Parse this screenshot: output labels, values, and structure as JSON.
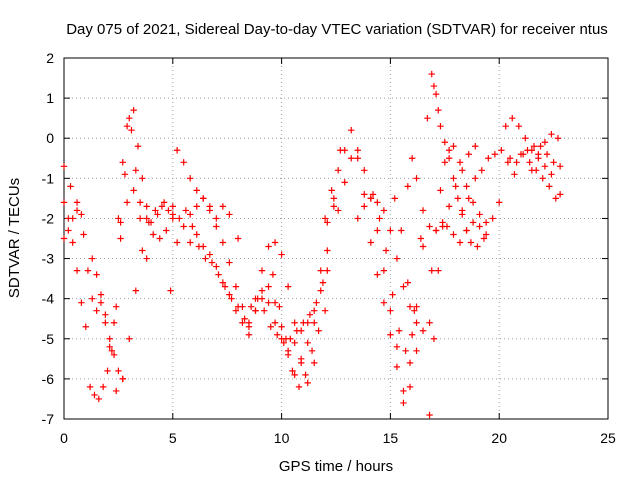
{
  "chart_data": {
    "type": "scatter",
    "title": "Day 075 of 2021, Sidereal Day-to-day VTEC variation (SDTVAR) for receiver ntus",
    "xlabel": "GPS time / hours",
    "ylabel": "SDTVAR / TECUs",
    "xlim": [
      0,
      25
    ],
    "ylim": [
      -7,
      2
    ],
    "xticks": [
      "0",
      "5",
      "10",
      "15",
      "20",
      "25"
    ],
    "yticks": [
      "2",
      "1",
      "0",
      "-1",
      "-2",
      "-3",
      "-4",
      "-5",
      "-6",
      "-7"
    ],
    "grid": true,
    "marker": "plus",
    "color": "#ff0000",
    "series": [
      {
        "x": [
          0.0,
          0.3,
          0.6,
          0.9,
          1.1,
          1.3,
          1.5,
          1.7,
          1.9,
          2.1,
          2.3,
          2.5,
          2.7,
          2.9,
          3.1,
          3.3,
          3.5,
          3.8
        ],
        "y": [
          -0.7,
          -1.2,
          -1.6,
          -2.4,
          -3.3,
          -4.0,
          -4.3,
          -4.1,
          -4.6,
          -5.2,
          -4.6,
          -2.0,
          -0.6,
          0.3,
          0.2,
          -0.8,
          -2.0,
          -3.0
        ]
      },
      {
        "x": [
          0.0,
          0.2,
          0.4,
          0.6,
          0.8
        ],
        "y": [
          -2.5,
          -2.3,
          -2.0,
          -1.8,
          -1.9
        ]
      },
      {
        "x": [
          0.0,
          0.2,
          0.4,
          0.6,
          0.8,
          1.0
        ],
        "y": [
          -1.6,
          -2.0,
          -2.6,
          -3.3,
          -4.1,
          -4.7
        ]
      },
      {
        "x": [
          1.2,
          1.4,
          1.6,
          1.8,
          2.0,
          2.2,
          2.4,
          2.6,
          2.8,
          3.0,
          3.2,
          3.4,
          3.6,
          3.8,
          4.0,
          4.3,
          4.6
        ],
        "y": [
          -6.2,
          -6.4,
          -6.5,
          -6.2,
          -5.8,
          -5.3,
          -4.2,
          -2.5,
          -0.9,
          0.5,
          0.7,
          -0.2,
          -1.0,
          -1.7,
          -2.1,
          -1.9,
          -1.6
        ]
      },
      {
        "x": [
          1.3,
          1.5,
          1.7,
          1.9,
          2.1,
          2.3,
          2.5,
          2.7
        ],
        "y": [
          -3.0,
          -3.4,
          -3.9,
          -4.4,
          -5.0,
          -5.4,
          -5.8,
          -6.0
        ]
      },
      {
        "x": [
          2.4,
          2.7,
          3.0,
          3.3,
          3.6,
          3.9,
          4.2,
          4.5,
          4.8,
          5.0
        ],
        "y": [
          -6.3,
          -6.0,
          -5.0,
          -3.8,
          -2.8,
          -2.1,
          -1.8,
          -1.7,
          -1.8,
          -1.9
        ]
      },
      {
        "x": [
          2.6,
          2.9,
          3.2,
          3.5,
          3.8,
          4.1,
          4.4,
          4.7,
          5.0
        ],
        "y": [
          -2.1,
          -1.6,
          -1.3,
          -1.6,
          -2.0,
          -2.4,
          -2.5,
          -2.3,
          -2.0
        ]
      },
      {
        "x": [
          4.9,
          5.2,
          5.5,
          5.8,
          6.1,
          6.4,
          6.7,
          7.0,
          7.3,
          7.6,
          8.0
        ],
        "y": [
          -3.8,
          -2.6,
          -2.2,
          -1.9,
          -1.7,
          -1.5,
          -1.7,
          -2.0,
          -1.7,
          -1.9,
          -2.5
        ]
      },
      {
        "x": [
          5.0,
          5.3,
          5.6,
          5.9,
          6.2,
          6.5,
          6.8,
          7.1,
          7.4,
          7.7,
          8.0,
          8.3,
          8.6,
          8.9,
          9.2,
          9.5,
          9.8,
          10.1,
          10.4,
          10.7,
          11.0,
          11.3,
          11.6,
          11.9,
          12.1,
          12.4,
          12.7
        ],
        "y": [
          -1.7,
          -2.0,
          -1.8,
          -2.2,
          -2.7,
          -3.0,
          -3.1,
          -3.4,
          -3.7,
          -4.0,
          -4.2,
          -4.5,
          -4.2,
          -4.0,
          -4.3,
          -4.7,
          -4.9,
          -5.1,
          -5.0,
          -4.8,
          -4.6,
          -4.4,
          -4.1,
          -3.6,
          -2.8,
          -1.5,
          -0.3
        ]
      },
      {
        "x": [
          5.2,
          5.5,
          5.8,
          6.1,
          6.4,
          6.7,
          7.0,
          7.3,
          7.6,
          7.9,
          8.2,
          8.5,
          8.8,
          9.1,
          9.4,
          9.7,
          10.0,
          10.3,
          10.6,
          10.9,
          11.2,
          11.5,
          11.8,
          12.1
        ],
        "y": [
          -0.3,
          -0.6,
          -1.0,
          -1.3,
          -1.5,
          -1.8,
          -2.2,
          -2.6,
          -3.1,
          -3.7,
          -4.2,
          -4.6,
          -4.3,
          -4.0,
          -4.1,
          -4.6,
          -5.0,
          -5.3,
          -5.1,
          -4.8,
          -4.6,
          -4.3,
          -3.8,
          -3.3
        ]
      },
      {
        "x": [
          5.8,
          6.1,
          6.4,
          6.7,
          7.0,
          7.3,
          7.6,
          7.9,
          8.2,
          8.5,
          8.8,
          9.1,
          9.4,
          9.7,
          10.0,
          10.3,
          10.6,
          10.9,
          11.2,
          11.5,
          11.8,
          12.1,
          12.4
        ],
        "y": [
          -2.6,
          -2.4,
          -2.7,
          -2.9,
          -3.2,
          -3.6,
          -3.9,
          -4.3,
          -4.6,
          -4.9,
          -4.3,
          -3.8,
          -3.7,
          -4.1,
          -4.7,
          -5.4,
          -5.9,
          -5.6,
          -5.1,
          -4.6,
          -3.3,
          -2.1,
          -1.7
        ]
      },
      {
        "x": [
          8.5,
          8.8,
          9.1,
          9.4,
          9.7,
          10.0,
          10.3,
          10.6,
          10.9,
          11.2,
          11.5
        ],
        "y": [
          -4.7,
          -4.0,
          -3.3,
          -2.7,
          -2.6,
          -2.9,
          -3.7,
          -4.6,
          -5.5,
          -6.1,
          -5.6
        ]
      },
      {
        "x": [
          9.6,
          9.9,
          10.2,
          10.5,
          10.8,
          11.1,
          11.4,
          11.7,
          12.0
        ],
        "y": [
          -3.4,
          -4.2,
          -5.0,
          -5.8,
          -6.2,
          -5.9,
          -5.3,
          -4.8,
          -4.3
        ]
      },
      {
        "x": [
          12.0,
          12.3,
          12.6,
          12.9,
          13.2,
          13.5,
          13.8,
          14.1,
          14.4,
          14.7,
          15.0,
          15.3,
          15.6,
          15.9,
          16.2,
          16.5
        ],
        "y": [
          -2.0,
          -1.3,
          -0.8,
          -0.3,
          0.2,
          -0.5,
          -1.4,
          -2.6,
          -3.4,
          -4.1,
          -4.9,
          -5.7,
          -6.3,
          -5.6,
          -4.2,
          -2.7
        ]
      },
      {
        "x": [
          12.6,
          12.9,
          13.2,
          13.5,
          13.8,
          14.1,
          14.4,
          14.7,
          15.0,
          15.3,
          15.6,
          15.9,
          16.2
        ],
        "y": [
          -1.8,
          -1.1,
          -0.5,
          -0.3,
          -0.8,
          -1.5,
          -2.3,
          -3.3,
          -4.3,
          -5.2,
          -6.6,
          -6.2,
          -5.3
        ]
      },
      {
        "x": [
          13.5,
          13.8,
          14.1,
          14.4,
          14.7,
          15.0,
          15.3,
          15.6,
          15.9,
          16.2,
          16.5,
          16.8
        ],
        "y": [
          -2.0,
          -1.7,
          -1.5,
          -1.6,
          -1.8,
          -2.3,
          -3.0,
          -3.7,
          -4.2,
          -4.6,
          -4.8,
          -4.6
        ]
      },
      {
        "x": [
          14.2,
          14.5,
          14.8,
          15.1,
          15.4,
          15.7,
          16.0
        ],
        "y": [
          -1.4,
          -2.0,
          -2.8,
          -3.9,
          -4.8,
          -5.3,
          -4.9
        ]
      },
      {
        "x": [
          15.2,
          15.5,
          15.8,
          16.1,
          16.4,
          16.7
        ],
        "y": [
          -1.5,
          -2.3,
          -3.6,
          -4.3,
          -2.5,
          0.5
        ]
      },
      {
        "x": [
          15.8,
          16.0,
          16.2,
          16.5,
          16.8,
          17.1,
          17.4,
          17.7,
          18.0,
          18.3,
          18.6,
          18.9
        ],
        "y": [
          -1.2,
          -0.5,
          -1.0,
          -1.8,
          -2.2,
          -2.3,
          -2.1,
          -1.7,
          -1.2,
          -0.8,
          -0.4,
          -0.2
        ]
      },
      {
        "x": [
          16.8,
          17.0,
          17.2,
          17.4,
          17.6,
          17.9,
          18.2,
          18.5,
          18.8,
          19.1,
          19.4
        ],
        "y": [
          -6.9,
          -5.0,
          -3.3,
          -2.2,
          -2.2,
          -2.4,
          -2.6,
          -2.3,
          -2.1,
          -2.2,
          -2.4
        ]
      },
      {
        "x": [
          16.9,
          17.1,
          17.3,
          17.5,
          17.7,
          17.9,
          18.2,
          18.5,
          18.8,
          19.1,
          19.4,
          19.7,
          20.0
        ],
        "y": [
          -3.3,
          -2.3,
          -1.3,
          -0.6,
          -0.3,
          -0.2,
          -0.6,
          -1.2,
          -1.6,
          -1.9,
          -2.1,
          -2.0,
          -1.6
        ]
      },
      {
        "x": [
          16.9,
          17.0,
          17.1,
          17.2,
          17.3,
          17.5,
          17.7,
          17.9,
          18.1,
          18.3,
          18.5,
          18.7,
          19.0,
          19.3
        ],
        "y": [
          1.6,
          1.3,
          1.1,
          0.7,
          0.3,
          -0.1,
          -0.5,
          -1.0,
          -1.5,
          -1.9,
          -2.3,
          -2.6,
          -2.7,
          -2.5
        ]
      },
      {
        "x": [
          18.3,
          18.6,
          18.9,
          19.2,
          19.5,
          19.8,
          20.1,
          20.4,
          20.7
        ],
        "y": [
          -1.8,
          -1.5,
          -1.0,
          -0.8,
          -0.5,
          -0.4,
          -0.3,
          -0.6,
          -0.9
        ]
      },
      {
        "x": [
          20.3,
          20.6,
          20.9,
          21.2,
          21.5,
          21.8,
          22.1,
          22.4,
          22.8
        ],
        "y": [
          0.3,
          0.5,
          0.3,
          0.0,
          -0.3,
          -0.5,
          -0.7,
          -0.9,
          -1.4
        ]
      },
      {
        "x": [
          20.5,
          20.8,
          21.1,
          21.4,
          21.7,
          22.0,
          22.3,
          22.6
        ],
        "y": [
          -0.5,
          -0.6,
          -0.4,
          -0.6,
          -0.8,
          -1.0,
          -1.2,
          -1.5
        ]
      },
      {
        "x": [
          21.0,
          21.3,
          21.6,
          21.9,
          22.2,
          22.5,
          22.8
        ],
        "y": [
          -0.4,
          -0.3,
          -0.2,
          -0.2,
          -0.4,
          -0.6,
          -0.7
        ]
      },
      {
        "x": [
          21.5,
          21.8,
          22.1,
          22.4,
          22.7
        ],
        "y": [
          -0.8,
          -0.4,
          -0.1,
          0.1,
          0.0
        ]
      }
    ]
  }
}
